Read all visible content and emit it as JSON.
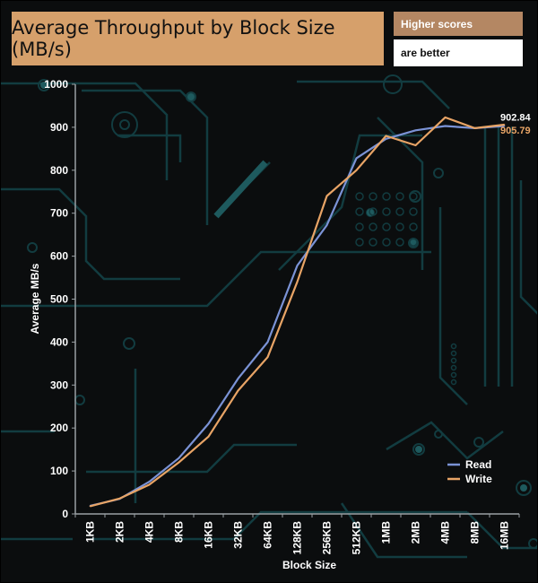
{
  "header": {
    "note_top": "Higher scores",
    "note_bottom": "are better"
  },
  "colors": {
    "title_bg": "#d6a06b",
    "read": "#7b93d6",
    "write": "#e8a466",
    "circuit": "#123c40"
  },
  "chart_data": {
    "type": "line",
    "title": "Average Throughput by Block Size (MB/s)",
    "xlabel": "Block Size",
    "ylabel": "Average MB/s",
    "ylim": [
      0,
      1000
    ],
    "yticks": [
      0,
      100,
      200,
      300,
      400,
      500,
      600,
      700,
      800,
      900,
      1000
    ],
    "categories": [
      "1KB",
      "2KB",
      "4KB",
      "8KB",
      "16KB",
      "32KB",
      "64KB",
      "128KB",
      "256KB",
      "512KB",
      "1MB",
      "2MB",
      "4MB",
      "8MB",
      "16MB"
    ],
    "series": [
      {
        "name": "Read",
        "color": "#7b93d6",
        "values": [
          19,
          35,
          75,
          130,
          210,
          315,
          400,
          578,
          672,
          828,
          873,
          893,
          903,
          898,
          903
        ],
        "end_label": "902.84"
      },
      {
        "name": "Write",
        "color": "#e8a466",
        "values": [
          18,
          36,
          68,
          120,
          180,
          287,
          365,
          540,
          740,
          800,
          880,
          858,
          923,
          898,
          906
        ],
        "end_label": "905.79"
      }
    ],
    "legend": "bottom-right"
  }
}
